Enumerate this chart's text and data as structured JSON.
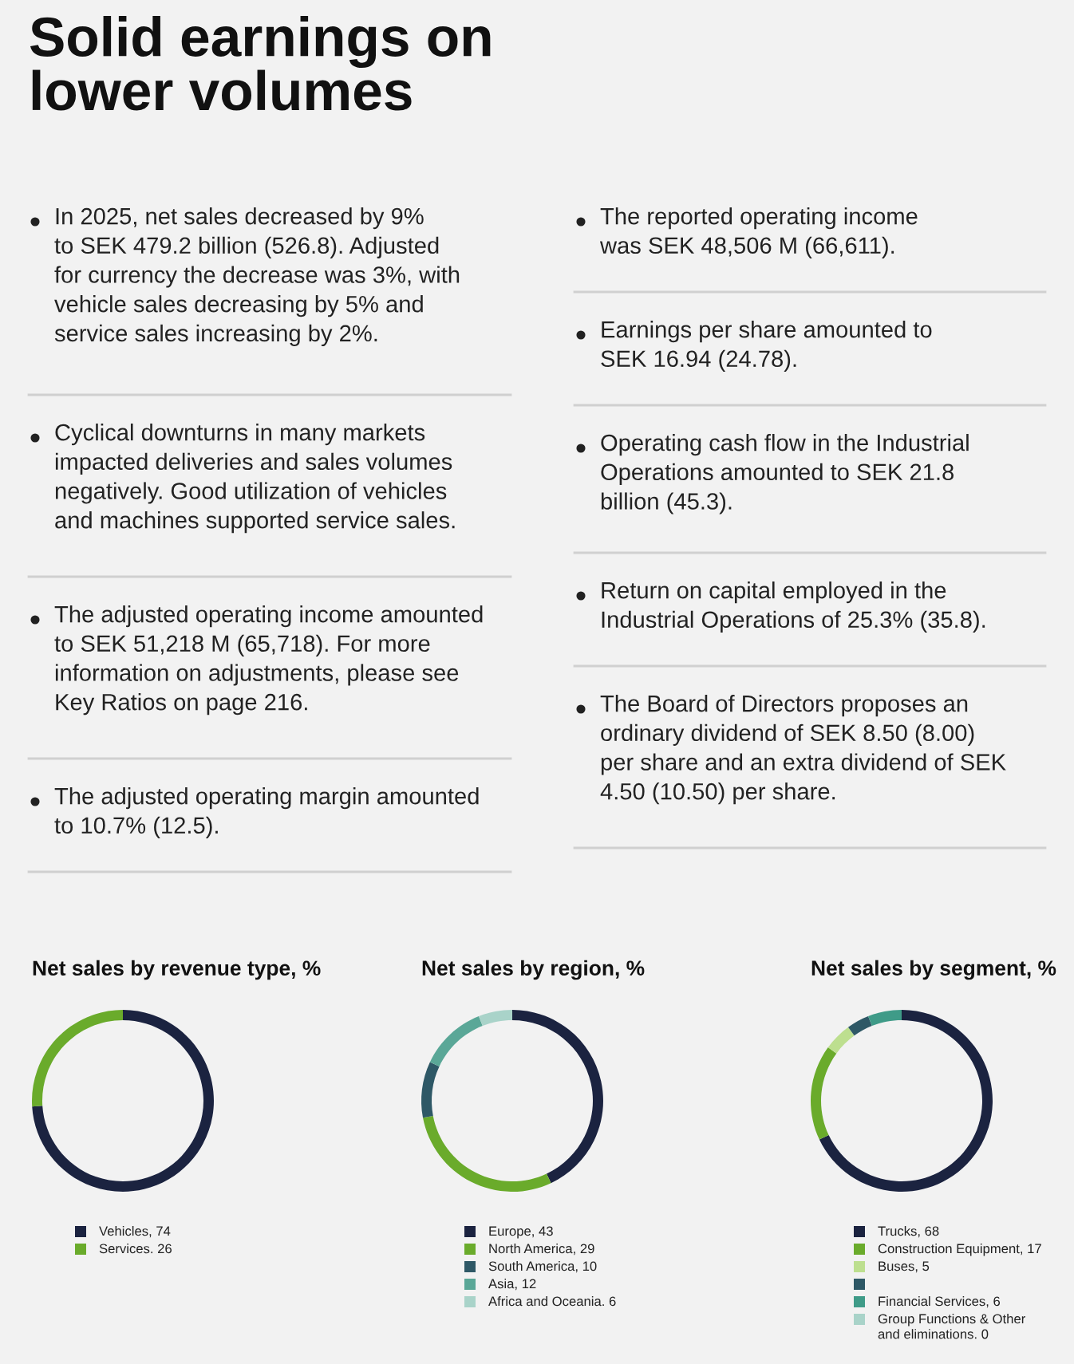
{
  "chart_data": [
    {
      "type": "other",
      "title": "Solid earnings on\nlower volumes",
      "annotations": [
        "In 2025, net sales decreased by 9%\nto SEK 479.2 billion (526.8). Adjusted\nfor currency the decrease was 3%, with\nvehicle sales decreasing by 5% and\nservice sales increasing by 2%.",
        "Cyclical downturns in many markets\nimpacted deliveries and sales volumes\nnegatively. Good utilization of vehicles\nand machines supported service sales.",
        "The adjusted operating income amounted\nto SEK 51,218 M (65,718). For more\ninformation on adjustments, please see\nKey Ratios on page 216.",
        "The adjusted operating margin amounted\nto 10.7% (12.5)."
      ]
    },
    {
      "type": "other",
      "annotations": [
        "The reported operating income\nwas SEK 48,506 M (66,611).",
        "Earnings per share amounted to\nSEK 16.94 (24.78).",
        "Operating cash flow in the Industrial\nOperations amounted to SEK 21.8\nbillion (45.3).",
        "Return on capital employed in the\nIndustrial Operations of 25.3% (35.8).",
        "The Board of Directors proposes an\nordinary dividend of SEK 8.50 (8.00)\nper share and an extra dividend of SEK\n4.50 (10.50) per share."
      ]
    },
    {
      "type": "donut",
      "title": "Net sales by revenue type, %",
      "legend": "bottom",
      "categories": [
        "Vehicles, 74",
        "Services. 26"
      ],
      "values": [
        74,
        26
      ],
      "colors": [
        "#1b2340",
        "#6aab2b"
      ]
    },
    {
      "type": "donut",
      "title": "Net sales by region, %",
      "legend": "bottom",
      "categories": [
        "Europe, 43",
        "North America, 29",
        "South America, 10",
        "Asia, 12",
        "Africa and Oceania. 6"
      ],
      "values": [
        43,
        29,
        10,
        12,
        6
      ],
      "colors": [
        "#1b2340",
        "#6aab2b",
        "#2e5866",
        "#5aa797",
        "#a9d3c9"
      ]
    },
    {
      "type": "donut",
      "title": "Net sales by segment, %",
      "legend": "bottom",
      "categories": [
        "Trucks, 68",
        "Construction Equipment, 17",
        "Buses, 5",
        null,
        "Financial Services, 6",
        "Group Functions & Other\nand eliminations. 0"
      ],
      "values": [
        68,
        17,
        5,
        4,
        6,
        0
      ],
      "colors": [
        "#1b2340",
        "#6aab2b",
        "#bddf8f",
        "#2e5866",
        "#3f9b88",
        "#a9d3c9"
      ]
    }
  ]
}
